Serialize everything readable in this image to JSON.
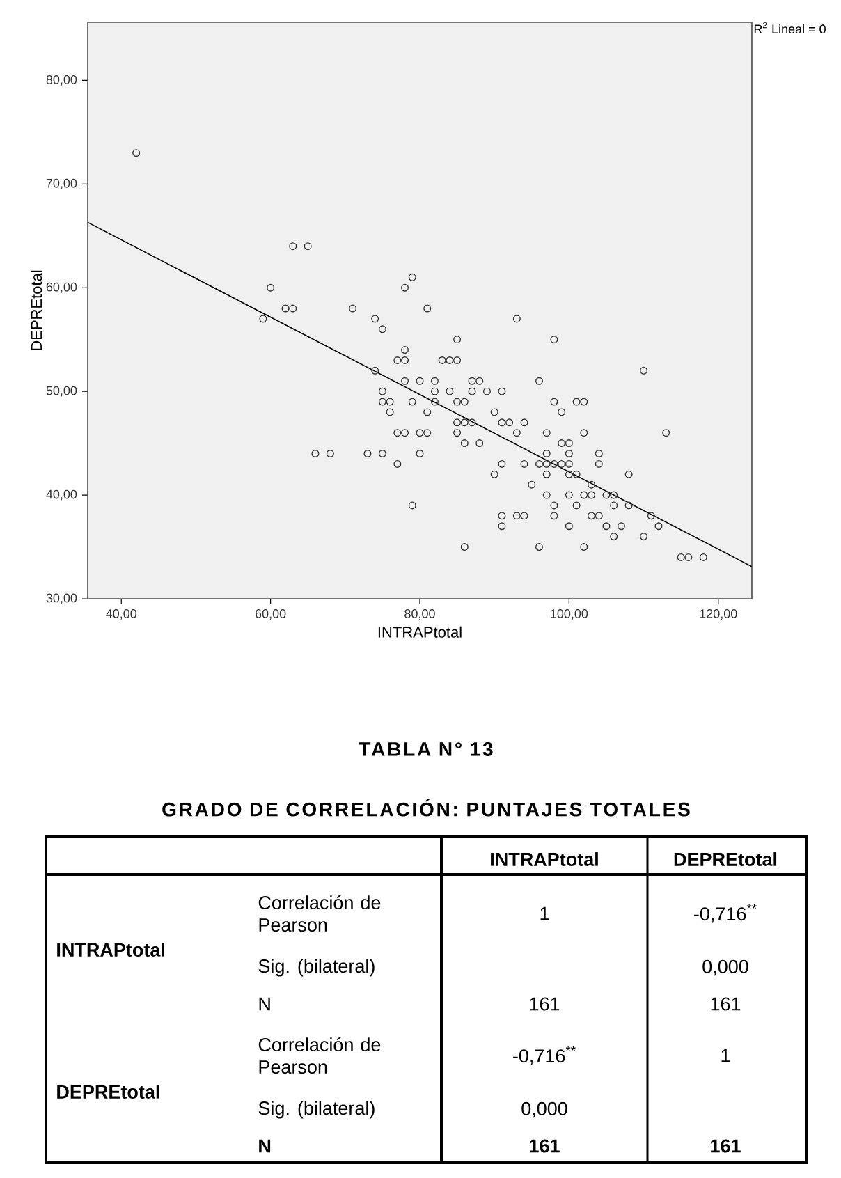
{
  "chart_data": {
    "type": "scatter",
    "xlabel": "INTRAPtotal",
    "ylabel": "DEPREtotal",
    "xlim": [
      35.5,
      124.5
    ],
    "ylim": [
      30,
      85.6
    ],
    "xticks": [
      {
        "value": 40,
        "label": "40,00"
      },
      {
        "value": 60,
        "label": "60,00"
      },
      {
        "value": 80,
        "label": "80,00"
      },
      {
        "value": 100,
        "label": "100,00"
      },
      {
        "value": 120,
        "label": "120,00"
      }
    ],
    "yticks": [
      {
        "value": 30,
        "label": "30,00"
      },
      {
        "value": 40,
        "label": "40,00"
      },
      {
        "value": 50,
        "label": "50,00"
      },
      {
        "value": 60,
        "label": "60,00"
      },
      {
        "value": 70,
        "label": "70,00"
      },
      {
        "value": 80,
        "label": "80,00"
      }
    ],
    "series": [
      {
        "marker": "circle",
        "color": "#333333",
        "x": [
          42,
          63,
          65,
          60,
          62,
          63,
          59,
          71,
          74,
          75,
          78,
          79,
          81,
          93,
          74,
          78,
          77,
          78,
          78,
          75,
          75,
          76,
          76,
          77,
          78,
          66,
          68,
          73,
          75,
          77,
          79,
          79,
          85,
          98,
          83,
          84,
          85,
          110,
          80,
          82,
          87,
          88,
          96,
          82,
          84,
          87,
          89,
          91,
          82,
          85,
          86,
          98,
          101,
          102,
          81,
          90,
          99,
          85,
          86,
          87,
          91,
          92,
          94,
          80,
          81,
          85,
          93,
          97,
          102,
          113,
          86,
          88,
          99,
          100,
          80,
          97,
          100,
          104,
          91,
          94,
          96,
          97,
          98,
          99,
          100,
          104,
          90,
          97,
          100,
          101,
          108,
          95,
          103,
          97,
          100,
          102,
          103,
          105,
          106,
          98,
          101,
          106,
          108,
          91,
          93,
          94,
          98,
          103,
          104,
          111,
          91,
          100,
          105,
          107,
          112,
          106,
          110,
          86,
          96,
          102,
          115,
          116,
          118
        ],
        "values": [
          73,
          64,
          64,
          60,
          58,
          58,
          57,
          58,
          57,
          56,
          60,
          61,
          58,
          57,
          52,
          54,
          53,
          53,
          51,
          50,
          49,
          49,
          48,
          46,
          46,
          44,
          44,
          44,
          44,
          43,
          49,
          39,
          55,
          55,
          53,
          53,
          53,
          52,
          51,
          51,
          51,
          51,
          51,
          50,
          50,
          50,
          50,
          50,
          49,
          49,
          49,
          49,
          49,
          49,
          48,
          48,
          48,
          47,
          47,
          47,
          47,
          47,
          47,
          46,
          46,
          46,
          46,
          46,
          46,
          46,
          45,
          45,
          45,
          45,
          44,
          44,
          44,
          44,
          43,
          43,
          43,
          43,
          43,
          43,
          43,
          43,
          42,
          42,
          42,
          42,
          42,
          41,
          41,
          40,
          40,
          40,
          40,
          40,
          40,
          39,
          39,
          39,
          39,
          38,
          38,
          38,
          38,
          38,
          38,
          38,
          37,
          37,
          37,
          37,
          37,
          36,
          36,
          35,
          35,
          35,
          34,
          34,
          34
        ]
      },
      {
        "type": "line",
        "color": "#000000",
        "x": [
          35.5,
          124.5
        ],
        "values": [
          66.3,
          33.1
        ]
      }
    ],
    "annotations": [
      "R$^{2}$ Lineal = 0",
      "TABLA N° 13",
      "GRADO DE CORRELACIÓN: PUNTAJES TOTALES",
      "INTRAPtotal",
      "DEPREtotal",
      "INTRAPtotal",
      "Correlación de Pearson",
      "1",
      "-0,716$^{**}$",
      "Sig. (bilateral)",
      "0,000",
      "N",
      "161",
      "161",
      "DEPREtotal",
      "Correlación de Pearson",
      "-0,716$^{**}$",
      "1",
      "Sig. (bilateral)",
      "0,000",
      "N",
      "161",
      "161"
    ]
  }
}
